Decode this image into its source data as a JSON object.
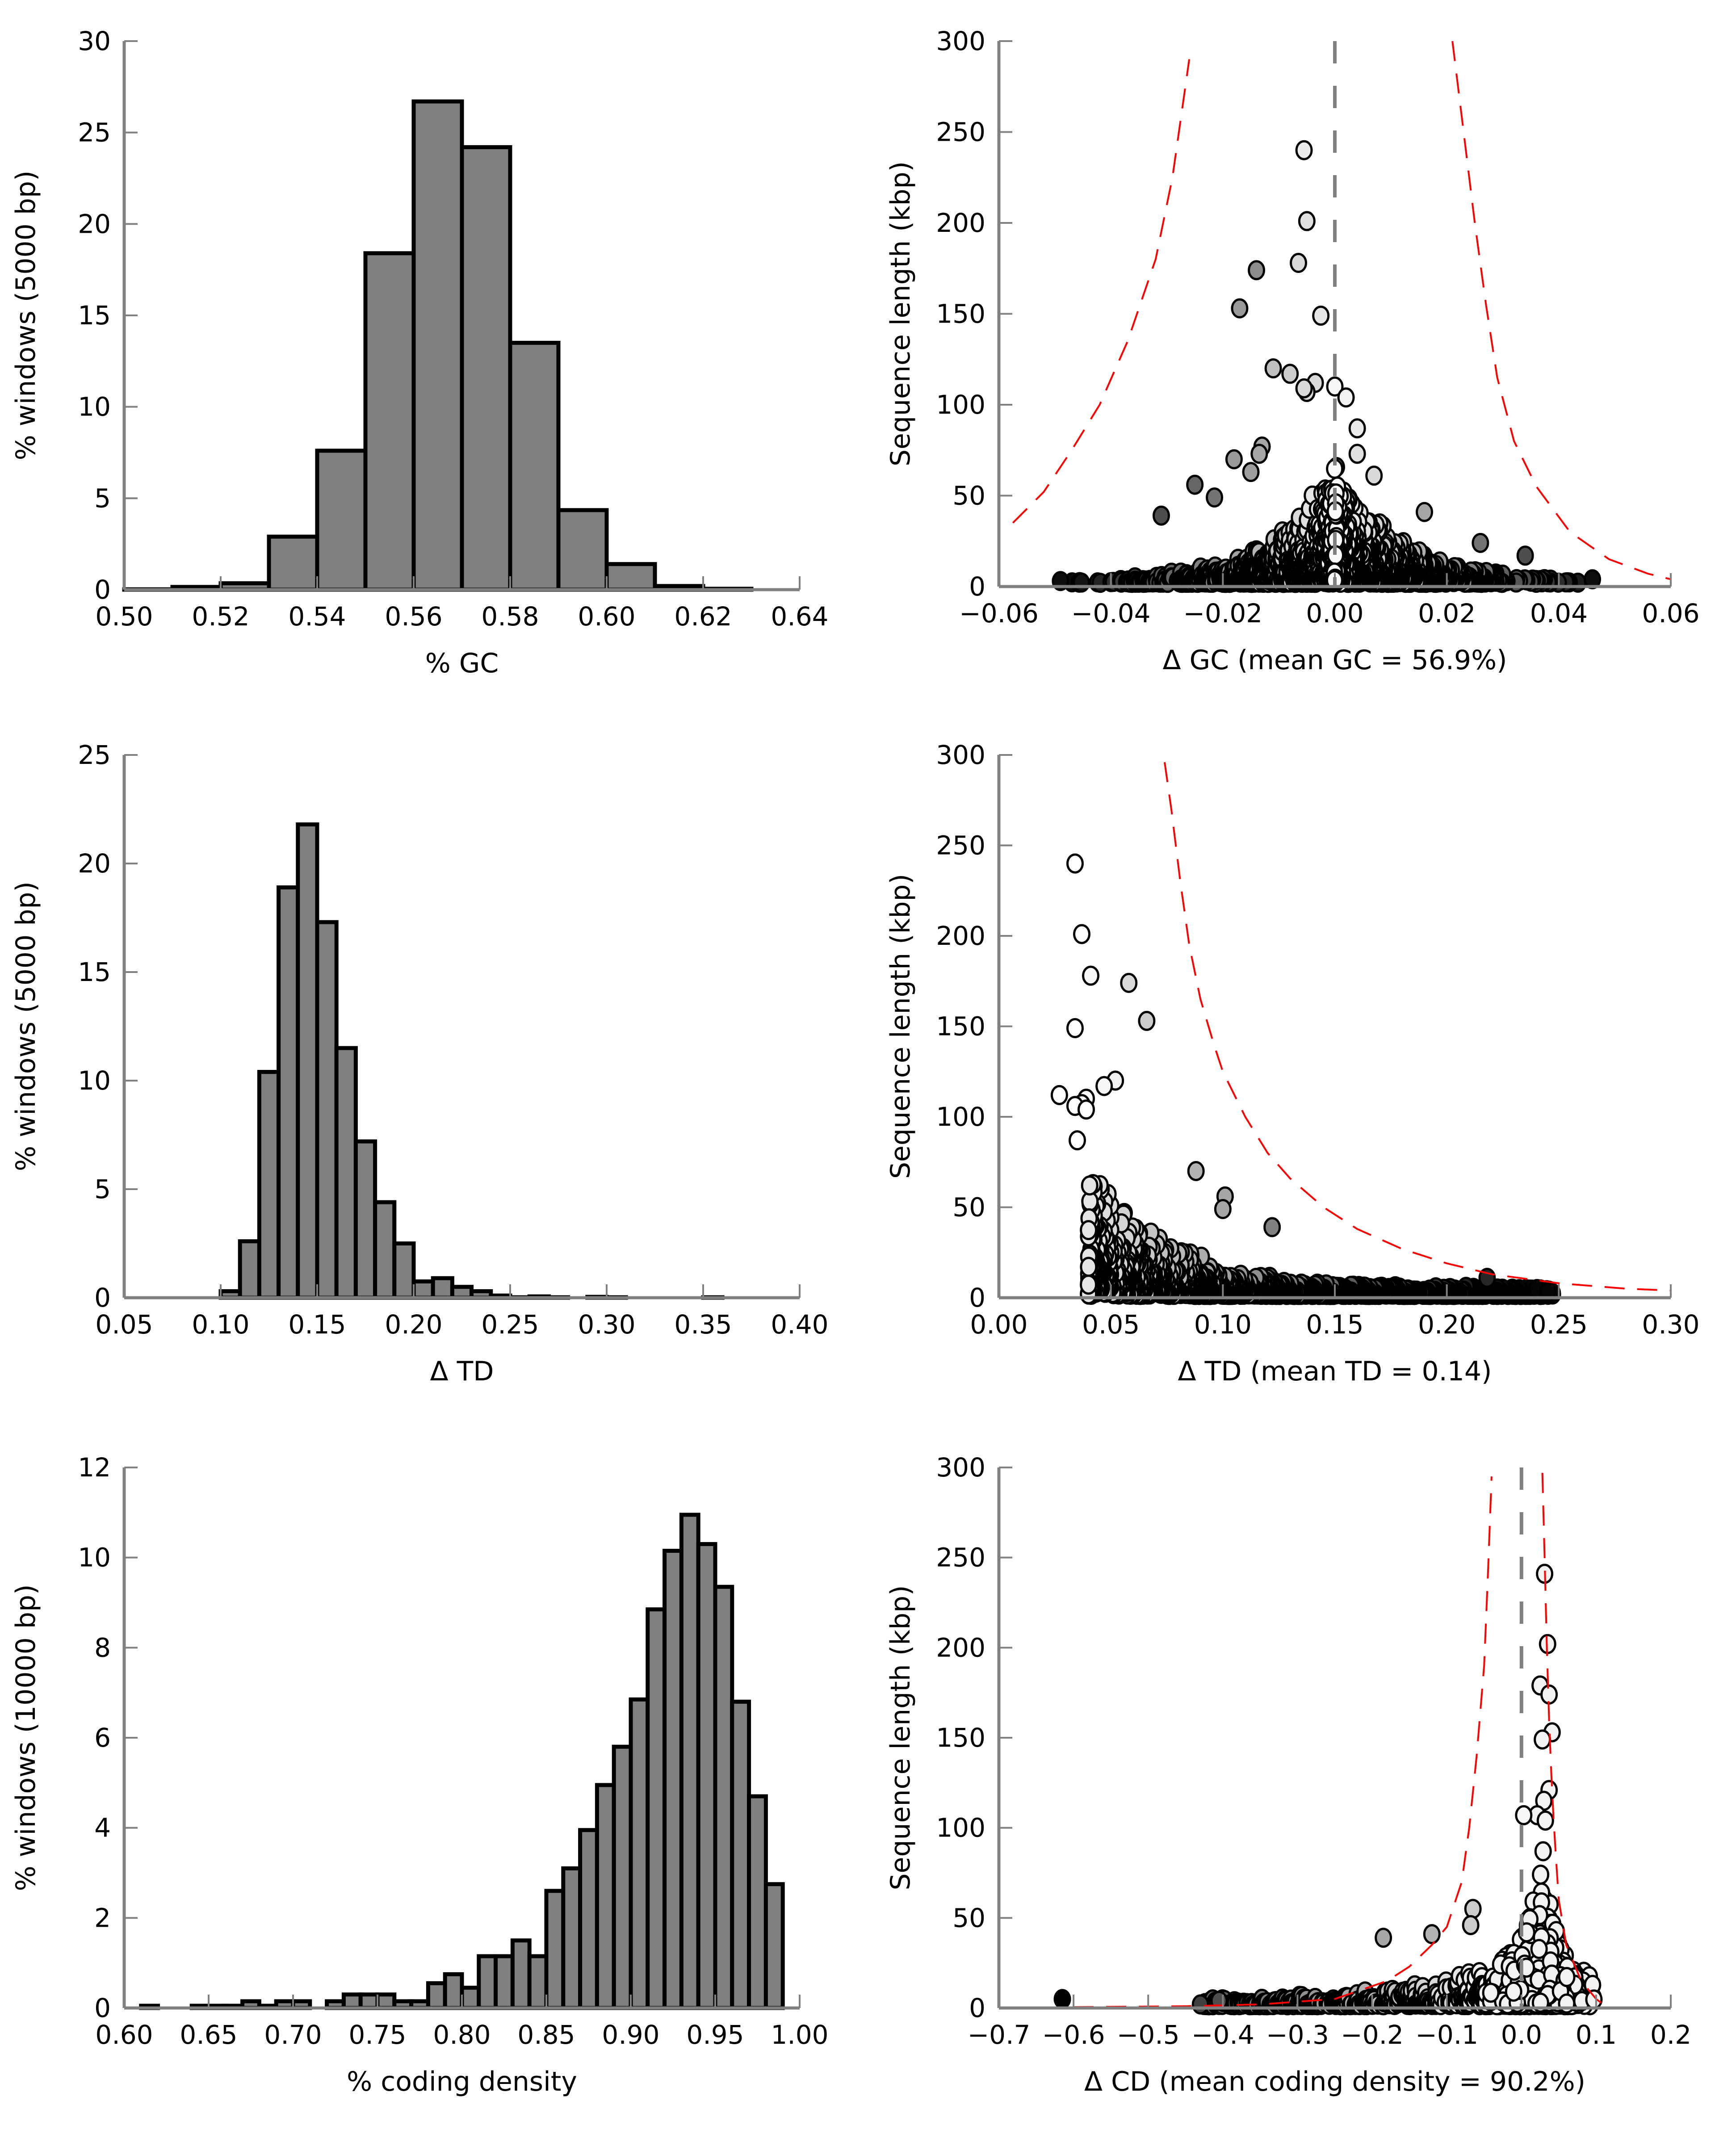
{
  "figure": {
    "panels": [
      "gc-histogram",
      "gc-scatter",
      "td-histogram",
      "td-scatter",
      "cd-histogram",
      "cd-scatter"
    ]
  },
  "colors": {
    "bar_fill": "#808080",
    "bar_edge": "#000000",
    "axis": "#808080",
    "threshold_curve": "#ff0000",
    "mean_line": "#808080"
  },
  "chart_data": [
    {
      "id": "gc-histogram",
      "type": "bar",
      "title": "",
      "xlabel": "% GC",
      "ylabel": "% windows (5000 bp)",
      "xlim": [
        0.5,
        0.64
      ],
      "ylim": [
        0,
        30
      ],
      "xticks": [
        "0.50",
        "0.52",
        "0.54",
        "0.56",
        "0.58",
        "0.60",
        "0.62",
        "0.64"
      ],
      "yticks": [
        "0",
        "5",
        "10",
        "15",
        "20",
        "25",
        "30"
      ],
      "bin_width": 0.01,
      "bins": [
        {
          "x0": 0.5,
          "value": 0.02
        },
        {
          "x0": 0.51,
          "value": 0.15
        },
        {
          "x0": 0.52,
          "value": 0.35
        },
        {
          "x0": 0.53,
          "value": 2.9
        },
        {
          "x0": 0.54,
          "value": 7.6
        },
        {
          "x0": 0.55,
          "value": 18.4
        },
        {
          "x0": 0.56,
          "value": 26.7
        },
        {
          "x0": 0.57,
          "value": 24.2
        },
        {
          "x0": 0.58,
          "value": 13.5
        },
        {
          "x0": 0.59,
          "value": 4.35
        },
        {
          "x0": 0.6,
          "value": 1.4
        },
        {
          "x0": 0.61,
          "value": 0.2
        },
        {
          "x0": 0.62,
          "value": 0.05
        }
      ]
    },
    {
      "id": "gc-scatter",
      "type": "scatter",
      "xlabel": "Δ GC (mean GC = 56.9%)",
      "ylabel": "Sequence length (kbp)",
      "xlim": [
        -0.06,
        0.06
      ],
      "ylim": [
        0,
        300
      ],
      "xticks": [
        "−0.06",
        "−0.04",
        "−0.02",
        "0.00",
        "0.02",
        "0.04",
        "0.06"
      ],
      "yticks": [
        "0",
        "50",
        "100",
        "150",
        "200",
        "250",
        "300"
      ],
      "mean_line_x": 0.0,
      "threshold_curves": [
        {
          "side": "left",
          "points": [
            [
              -0.0575,
              35
            ],
            [
              -0.052,
              52
            ],
            [
              -0.047,
              75
            ],
            [
              -0.042,
              100
            ],
            [
              -0.037,
              135
            ],
            [
              -0.032,
              180
            ],
            [
              -0.029,
              225
            ],
            [
              -0.026,
              290
            ]
          ]
        },
        {
          "side": "right",
          "points": [
            [
              0.021,
              300
            ],
            [
              0.023,
              250
            ],
            [
              0.025,
              200
            ],
            [
              0.027,
              155
            ],
            [
              0.029,
              115
            ],
            [
              0.032,
              80
            ],
            [
              0.036,
              55
            ],
            [
              0.042,
              30
            ],
            [
              0.049,
              15
            ],
            [
              0.056,
              7
            ],
            [
              0.06,
              4
            ]
          ]
        }
      ],
      "outliers": [
        {
          "x": -0.0055,
          "y": 240,
          "shade": 0.92
        },
        {
          "x": -0.005,
          "y": 201,
          "shade": 0.88
        },
        {
          "x": -0.0065,
          "y": 178,
          "shade": 0.85
        },
        {
          "x": -0.014,
          "y": 174,
          "shade": 0.55
        },
        {
          "x": -0.017,
          "y": 153,
          "shade": 0.6
        },
        {
          "x": -0.0025,
          "y": 149,
          "shade": 0.9
        },
        {
          "x": -0.011,
          "y": 120,
          "shade": 0.75
        },
        {
          "x": -0.008,
          "y": 117,
          "shade": 0.8
        },
        {
          "x": -0.0035,
          "y": 112,
          "shade": 0.85
        },
        {
          "x": -0.005,
          "y": 107,
          "shade": 0.85
        },
        {
          "x": -0.0055,
          "y": 109,
          "shade": 0.85
        },
        {
          "x": 0.0,
          "y": 110,
          "shade": 0.97
        },
        {
          "x": 0.002,
          "y": 104,
          "shade": 0.95
        },
        {
          "x": 0.004,
          "y": 87,
          "shade": 0.92
        },
        {
          "x": 0.004,
          "y": 73,
          "shade": 0.88
        },
        {
          "x": 0.007,
          "y": 61,
          "shade": 0.85
        },
        {
          "x": -0.013,
          "y": 77,
          "shade": 0.65
        },
        {
          "x": -0.0135,
          "y": 73,
          "shade": 0.65
        },
        {
          "x": -0.018,
          "y": 70,
          "shade": 0.6
        },
        {
          "x": -0.015,
          "y": 63,
          "shade": 0.62
        },
        {
          "x": -0.025,
          "y": 56,
          "shade": 0.4
        },
        {
          "x": -0.0215,
          "y": 49,
          "shade": 0.45
        },
        {
          "x": -0.031,
          "y": 39,
          "shade": 0.3
        },
        {
          "x": 0.016,
          "y": 41,
          "shade": 0.65
        },
        {
          "x": 0.026,
          "y": 24,
          "shade": 0.45
        },
        {
          "x": 0.034,
          "y": 17,
          "shade": 0.3
        },
        {
          "x": -0.049,
          "y": 3,
          "shade": 0.05
        },
        {
          "x": 0.046,
          "y": 4,
          "shade": 0.05
        }
      ],
      "cloud": {
        "description": "dense cluster of ~2000 sequences below 80 kbp spanning −0.049 to 0.046, shaded white near 0 to black at extremes",
        "x_range": [
          -0.049,
          0.046
        ],
        "y_max_at_center": 75,
        "n_points": 1500
      }
    },
    {
      "id": "td-histogram",
      "type": "bar",
      "xlabel": "Δ TD",
      "ylabel": "% windows (5000 bp)",
      "xlim": [
        0.05,
        0.4
      ],
      "ylim": [
        0,
        25
      ],
      "xticks": [
        "0.05",
        "0.10",
        "0.15",
        "0.20",
        "0.25",
        "0.30",
        "0.35",
        "0.40"
      ],
      "yticks": [
        "0",
        "5",
        "10",
        "15",
        "20",
        "25"
      ],
      "bin_width": 0.01,
      "bins": [
        {
          "x0": 0.1,
          "value": 0.3
        },
        {
          "x0": 0.11,
          "value": 2.6
        },
        {
          "x0": 0.12,
          "value": 10.4
        },
        {
          "x0": 0.13,
          "value": 18.9
        },
        {
          "x0": 0.14,
          "value": 21.8
        },
        {
          "x0": 0.15,
          "value": 17.3
        },
        {
          "x0": 0.16,
          "value": 11.5
        },
        {
          "x0": 0.17,
          "value": 7.2
        },
        {
          "x0": 0.18,
          "value": 4.4
        },
        {
          "x0": 0.19,
          "value": 2.5
        },
        {
          "x0": 0.2,
          "value": 0.75
        },
        {
          "x0": 0.21,
          "value": 0.9
        },
        {
          "x0": 0.22,
          "value": 0.5
        },
        {
          "x0": 0.23,
          "value": 0.3
        },
        {
          "x0": 0.24,
          "value": 0.1
        },
        {
          "x0": 0.25,
          "value": 0.02
        },
        {
          "x0": 0.26,
          "value": 0.06
        },
        {
          "x0": 0.27,
          "value": 0.02
        },
        {
          "x0": 0.29,
          "value": 0.04
        },
        {
          "x0": 0.3,
          "value": 0.02
        },
        {
          "x0": 0.35,
          "value": 0.02
        }
      ]
    },
    {
      "id": "td-scatter",
      "type": "scatter",
      "xlabel": "Δ TD (mean TD = 0.14)",
      "ylabel": "Sequence length (kbp)",
      "xlim": [
        0.0,
        0.3
      ],
      "ylim": [
        0,
        300
      ],
      "xticks": [
        "0.00",
        "0.05",
        "0.10",
        "0.15",
        "0.20",
        "0.25",
        "0.30"
      ],
      "yticks": [
        "0",
        "50",
        "100",
        "150",
        "200",
        "250",
        "300"
      ],
      "threshold_curves": [
        {
          "side": "right",
          "points": [
            [
              0.074,
              296
            ],
            [
              0.077,
              270
            ],
            [
              0.081,
              230
            ],
            [
              0.085,
              195
            ],
            [
              0.09,
              165
            ],
            [
              0.096,
              140
            ],
            [
              0.1,
              125
            ],
            [
              0.11,
              100
            ],
            [
              0.12,
              80
            ],
            [
              0.13,
              66
            ],
            [
              0.145,
              50
            ],
            [
              0.16,
              38
            ],
            [
              0.18,
              27
            ],
            [
              0.2,
              19
            ],
            [
              0.22,
              13
            ],
            [
              0.25,
              8
            ],
            [
              0.28,
              5
            ],
            [
              0.3,
              4
            ]
          ]
        }
      ],
      "outliers": [
        {
          "x": 0.034,
          "y": 240,
          "shade": 1.0
        },
        {
          "x": 0.037,
          "y": 201,
          "shade": 1.0
        },
        {
          "x": 0.041,
          "y": 178,
          "shade": 0.97
        },
        {
          "x": 0.058,
          "y": 174,
          "shade": 0.85
        },
        {
          "x": 0.034,
          "y": 149,
          "shade": 1.0
        },
        {
          "x": 0.066,
          "y": 153,
          "shade": 0.8
        },
        {
          "x": 0.052,
          "y": 120,
          "shade": 0.95
        },
        {
          "x": 0.047,
          "y": 117,
          "shade": 0.97
        },
        {
          "x": 0.027,
          "y": 112,
          "shade": 1.0
        },
        {
          "x": 0.039,
          "y": 110,
          "shade": 1.0
        },
        {
          "x": 0.037,
          "y": 107,
          "shade": 1.0
        },
        {
          "x": 0.034,
          "y": 106,
          "shade": 1.0
        },
        {
          "x": 0.039,
          "y": 104,
          "shade": 1.0
        },
        {
          "x": 0.035,
          "y": 87,
          "shade": 1.0
        },
        {
          "x": 0.088,
          "y": 70,
          "shade": 0.7
        },
        {
          "x": 0.101,
          "y": 56,
          "shade": 0.65
        },
        {
          "x": 0.1,
          "y": 49,
          "shade": 0.65
        },
        {
          "x": 0.122,
          "y": 39,
          "shade": 0.5
        },
        {
          "x": 0.218,
          "y": 11,
          "shade": 0.15
        }
      ],
      "cloud": {
        "description": "dense cluster decaying from ~75 kbp at ΔTD 0.04 to ~3 kbp at 0.25, shaded light to dark with increasing ΔTD",
        "x_range": [
          0.037,
          0.248
        ],
        "n_points": 1500
      }
    },
    {
      "id": "cd-histogram",
      "type": "bar",
      "xlabel": "% coding density",
      "ylabel": "% windows (10000 bp)",
      "xlim": [
        0.6,
        1.0
      ],
      "ylim": [
        0,
        12
      ],
      "xticks": [
        "0.60",
        "0.65",
        "0.70",
        "0.75",
        "0.80",
        "0.85",
        "0.90",
        "0.95",
        "1.00"
      ],
      "yticks": [
        "0",
        "2",
        "4",
        "6",
        "8",
        "10",
        "12"
      ],
      "bin_width": 0.01,
      "bins": [
        {
          "x0": 0.61,
          "value": 0.05
        },
        {
          "x0": 0.64,
          "value": 0.05
        },
        {
          "x0": 0.65,
          "value": 0.05
        },
        {
          "x0": 0.66,
          "value": 0.05
        },
        {
          "x0": 0.67,
          "value": 0.15
        },
        {
          "x0": 0.68,
          "value": 0.05
        },
        {
          "x0": 0.69,
          "value": 0.15
        },
        {
          "x0": 0.7,
          "value": 0.15
        },
        {
          "x0": 0.72,
          "value": 0.15
        },
        {
          "x0": 0.73,
          "value": 0.3
        },
        {
          "x0": 0.74,
          "value": 0.3
        },
        {
          "x0": 0.75,
          "value": 0.3
        },
        {
          "x0": 0.76,
          "value": 0.15
        },
        {
          "x0": 0.77,
          "value": 0.15
        },
        {
          "x0": 0.78,
          "value": 0.55
        },
        {
          "x0": 0.79,
          "value": 0.75
        },
        {
          "x0": 0.8,
          "value": 0.45
        },
        {
          "x0": 0.81,
          "value": 1.15
        },
        {
          "x0": 0.82,
          "value": 1.15
        },
        {
          "x0": 0.83,
          "value": 1.5
        },
        {
          "x0": 0.84,
          "value": 1.15
        },
        {
          "x0": 0.85,
          "value": 2.6
        },
        {
          "x0": 0.86,
          "value": 3.1
        },
        {
          "x0": 0.87,
          "value": 3.95
        },
        {
          "x0": 0.88,
          "value": 4.95
        },
        {
          "x0": 0.89,
          "value": 5.8
        },
        {
          "x0": 0.9,
          "value": 6.85
        },
        {
          "x0": 0.91,
          "value": 8.85
        },
        {
          "x0": 0.92,
          "value": 10.15
        },
        {
          "x0": 0.93,
          "value": 10.95
        },
        {
          "x0": 0.94,
          "value": 10.3
        },
        {
          "x0": 0.95,
          "value": 9.35
        },
        {
          "x0": 0.96,
          "value": 6.8
        },
        {
          "x0": 0.97,
          "value": 4.7
        },
        {
          "x0": 0.98,
          "value": 2.75
        }
      ]
    },
    {
      "id": "cd-scatter",
      "type": "scatter",
      "xlabel": "Δ CD (mean coding density = 90.2%)",
      "ylabel": "Sequence length (kbp)",
      "xlim": [
        -0.7,
        0.2
      ],
      "ylim": [
        0,
        300
      ],
      "xticks": [
        "−0.7",
        "−0.6",
        "−0.5",
        "−0.4",
        "−0.3",
        "−0.2",
        "−0.1",
        "0.0",
        "0.1",
        "0.2"
      ],
      "yticks": [
        "0",
        "50",
        "100",
        "150",
        "200",
        "250",
        "300"
      ],
      "mean_line_x": 0.0,
      "threshold_curves": [
        {
          "side": "left",
          "points": [
            [
              -0.6,
              0.5
            ],
            [
              -0.45,
              1
            ],
            [
              -0.35,
              2
            ],
            [
              -0.25,
              5
            ],
            [
              -0.18,
              15
            ],
            [
              -0.15,
              23
            ],
            [
              -0.12,
              35
            ],
            [
              -0.1,
              45
            ],
            [
              -0.08,
              70
            ],
            [
              -0.07,
              100
            ],
            [
              -0.06,
              140
            ],
            [
              -0.05,
              190
            ],
            [
              -0.045,
              240
            ],
            [
              -0.04,
              295
            ]
          ]
        },
        {
          "side": "right",
          "points": [
            [
              0.028,
              297
            ],
            [
              0.031,
              250
            ],
            [
              0.034,
              200
            ],
            [
              0.037,
              160
            ],
            [
              0.04,
              130
            ],
            [
              0.043,
              105
            ],
            [
              0.046,
              85
            ],
            [
              0.05,
              60
            ],
            [
              0.06,
              35
            ],
            [
              0.08,
              15
            ],
            [
              0.1,
              5
            ],
            [
              0.113,
              1
            ]
          ]
        }
      ],
      "outliers": [
        {
          "x": 0.031,
          "y": 241,
          "shade": 0.95
        },
        {
          "x": 0.035,
          "y": 202,
          "shade": 0.95
        },
        {
          "x": 0.025,
          "y": 179,
          "shade": 0.95
        },
        {
          "x": 0.037,
          "y": 174,
          "shade": 0.95
        },
        {
          "x": 0.041,
          "y": 153,
          "shade": 0.95
        },
        {
          "x": 0.028,
          "y": 149,
          "shade": 0.95
        },
        {
          "x": 0.037,
          "y": 121,
          "shade": 0.95
        },
        {
          "x": 0.03,
          "y": 115,
          "shade": 0.95
        },
        {
          "x": 0.021,
          "y": 107,
          "shade": 0.95
        },
        {
          "x": 0.032,
          "y": 104,
          "shade": 0.95
        },
        {
          "x": 0.003,
          "y": 107,
          "shade": 0.97
        },
        {
          "x": 0.029,
          "y": 87,
          "shade": 0.95
        },
        {
          "x": -0.065,
          "y": 55,
          "shade": 0.8
        },
        {
          "x": -0.068,
          "y": 46,
          "shade": 0.8
        },
        {
          "x": -0.12,
          "y": 41,
          "shade": 0.7
        },
        {
          "x": -0.185,
          "y": 39,
          "shade": 0.65
        },
        {
          "x": -0.615,
          "y": 5,
          "shade": 0.0
        },
        {
          "x": -0.43,
          "y": 2,
          "shade": 0.25
        },
        {
          "x": -0.405,
          "y": 4,
          "shade": 0.3
        }
      ],
      "cloud": {
        "description": "dense cluster near ΔCD 0.0–0.1 up to ~75 kbp, with a low tail extending to −0.43, shaded white near center and darker toward negative values",
        "x_range": [
          -0.43,
          0.1
        ],
        "n_points": 1500
      }
    }
  ]
}
